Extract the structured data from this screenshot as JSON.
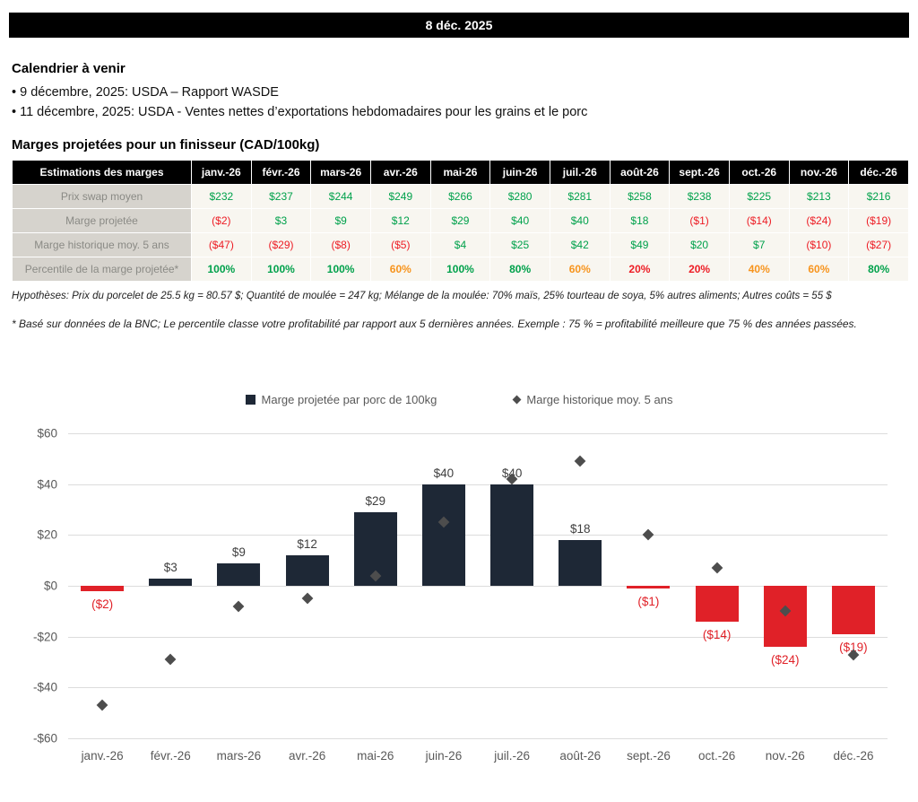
{
  "banner": {
    "date": "8 déc. 2025"
  },
  "calendar": {
    "title": "Calendrier à venir",
    "items": [
      "• 9 décembre, 2025: USDA – Rapport WASDE",
      "• 11 décembre, 2025: USDA - Ventes nettes d’exportations hebdomadaires pour les grains et le porc"
    ]
  },
  "margins": {
    "title": "Marges projetées pour un finisseur (CAD/100kg)",
    "table": {
      "header": [
        "Estimations des marges",
        "janv.-26",
        "févr.-26",
        "mars-26",
        "avr.-26",
        "mai-26",
        "juin-26",
        "juil.-26",
        "août-26",
        "sept.-26",
        "oct.-26",
        "nov.-26",
        "déc.-26"
      ],
      "rows": [
        {
          "label": "Prix swap moyen",
          "values": [
            "$232",
            "$237",
            "$244",
            "$249",
            "$266",
            "$280",
            "$281",
            "$258",
            "$238",
            "$225",
            "$213",
            "$216"
          ],
          "colors": [
            "green",
            "green",
            "green",
            "green",
            "green",
            "green",
            "green",
            "green",
            "green",
            "green",
            "green",
            "green"
          ],
          "bold": false
        },
        {
          "label": "Marge projetée",
          "values": [
            "($2)",
            "$3",
            "$9",
            "$12",
            "$29",
            "$40",
            "$40",
            "$18",
            "($1)",
            "($14)",
            "($24)",
            "($19)"
          ],
          "colors": [
            "red",
            "green",
            "green",
            "green",
            "green",
            "green",
            "green",
            "green",
            "red",
            "red",
            "red",
            "red"
          ],
          "bold": false
        },
        {
          "label": "Marge historique moy. 5 ans",
          "values": [
            "($47)",
            "($29)",
            "($8)",
            "($5)",
            "$4",
            "$25",
            "$42",
            "$49",
            "$20",
            "$7",
            "($10)",
            "($27)"
          ],
          "colors": [
            "red",
            "red",
            "red",
            "red",
            "green",
            "green",
            "green",
            "green",
            "green",
            "green",
            "red",
            "red"
          ],
          "bold": false
        },
        {
          "label": "Percentile de la marge projetée*",
          "values": [
            "100%",
            "100%",
            "100%",
            "60%",
            "100%",
            "80%",
            "60%",
            "20%",
            "20%",
            "40%",
            "60%",
            "80%"
          ],
          "colors": [
            "green",
            "green",
            "green",
            "orange",
            "green",
            "green",
            "orange",
            "red",
            "red",
            "orange",
            "orange",
            "green"
          ],
          "bold": true
        }
      ]
    },
    "hypotheses": "Hypothèses: Prix du porcelet de 25.5 kg = 80.57 $; Quantité de moulée = 247 kg; Mélange de la moulée: 70% maïs, 25% tourteau de soya, 5% autres aliments; Autres coûts = 55 $",
    "footnote": "* Basé sur données de la BNC; Le percentile classe votre profitabilité par rapport aux 5 dernières années. Exemple : 75 % = profitabilité meilleure que 75 % des années passées."
  },
  "chart_data": {
    "type": "bar",
    "categories": [
      "janv.-26",
      "févr.-26",
      "mars-26",
      "avr.-26",
      "mai-26",
      "juin-26",
      "juil.-26",
      "août-26",
      "sept.-26",
      "oct.-26",
      "nov.-26",
      "déc.-26"
    ],
    "series": [
      {
        "name": "Marge projetée par porc de 100kg",
        "type": "bar",
        "values": [
          -2,
          3,
          9,
          12,
          29,
          40,
          40,
          18,
          -1,
          -14,
          -24,
          -19
        ],
        "labels": [
          "($2)",
          "$3",
          "$9",
          "$12",
          "$29",
          "$40",
          "$40",
          "$18",
          "($1)",
          "($14)",
          "($24)",
          "($19)"
        ]
      },
      {
        "name": "Marge historique moy. 5 ans",
        "type": "scatter",
        "marker": "diamond",
        "values": [
          -47,
          -29,
          -8,
          -5,
          4,
          25,
          42,
          49,
          20,
          7,
          -10,
          -27
        ]
      }
    ],
    "ylim": [
      -60,
      60
    ],
    "yticks": [
      60,
      40,
      20,
      0,
      -20,
      -40,
      -60
    ],
    "ytick_labels": [
      "$60",
      "$40",
      "$20",
      "$0",
      "-$20",
      "-$40",
      "-$60"
    ],
    "grid": true,
    "legend_position": "top",
    "colors": {
      "bar_positive": "#1e2836",
      "bar_negative": "#e02128",
      "marker": "#4d4d4d",
      "label_positive": "#3f3f3f",
      "label_negative": "#e02128"
    }
  }
}
